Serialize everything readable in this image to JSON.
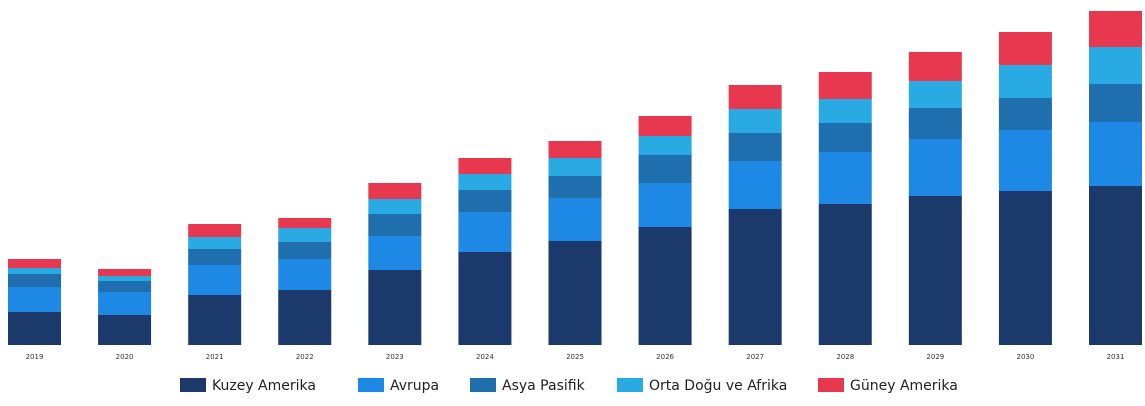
{
  "chart_data": {
    "type": "bar",
    "stacked": true,
    "title": "",
    "xlabel": "",
    "ylabel": "",
    "grid": false,
    "legend_position": "bottom",
    "categories": [
      "2019",
      "2020",
      "2021",
      "2022",
      "2023",
      "2024",
      "2025",
      "2026",
      "2027",
      "2028",
      "2029",
      "2030",
      "2031"
    ],
    "ylim": [
      0,
      340
    ],
    "series": [
      {
        "name": "Kuzey Amerika",
        "color": "#1b3a6b",
        "values": [
          33,
          30,
          50,
          55,
          75,
          93,
          104,
          118,
          136,
          141,
          149,
          154,
          159
        ]
      },
      {
        "name": "Avrupa",
        "color": "#1e88e5",
        "values": [
          25,
          23,
          30,
          31,
          34,
          40,
          43,
          44,
          48,
          52,
          57,
          61,
          64
        ]
      },
      {
        "name": "Asya Pasifik",
        "color": "#1f6fae",
        "values": [
          13,
          11,
          16,
          17,
          22,
          22,
          22,
          28,
          28,
          29,
          31,
          32,
          38
        ]
      },
      {
        "name": "Orta Doğu ve Afrika",
        "color": "#29aae2",
        "values": [
          6,
          5,
          12,
          14,
          15,
          16,
          18,
          19,
          24,
          24,
          27,
          33,
          37
        ]
      },
      {
        "name": "Güney Amerika",
        "color": "#e8384f",
        "values": [
          9,
          7,
          13,
          10,
          16,
          16,
          17,
          20,
          24,
          27,
          29,
          33,
          36
        ]
      }
    ]
  }
}
